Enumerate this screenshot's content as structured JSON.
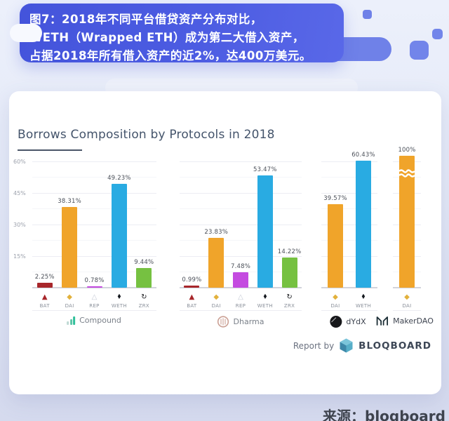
{
  "banner": {
    "lines": [
      "图7：2018年不同平台借贷资产分布对比，",
      "WETH（Wrapped ETH）成为第二大借入资产，",
      "占据2018年所有借入资产的近2%，达400万美元。"
    ],
    "bg_color": "#4C5CE2"
  },
  "card": {
    "title": "Borrows Composition by Protocols in 2018"
  },
  "chart_data": {
    "type": "bar",
    "title": "Borrows Composition by Protocols in 2018",
    "xlabel": "",
    "ylabel": "",
    "ylim": [
      0,
      60
    ],
    "yticks": [
      "60%",
      "45%",
      "30%",
      "15%"
    ],
    "grid": true,
    "legend_position": "none",
    "note": "MakerDAO DAI bar equals 100% and is drawn truncated with an axis-break squiggle",
    "token_colors": {
      "BAT": "#A8272B",
      "DAI": "#F0A42A",
      "REP": "#C44BE0",
      "WETH": "#29ABE2",
      "ZRX": "#76C141"
    },
    "token_icons": {
      "BAT": "▲",
      "DAI": "◆",
      "REP": "△",
      "WETH": "♦",
      "ZRX": "↻"
    },
    "token_icon_colors": {
      "BAT": "#A8272B",
      "DAI": "#E2B13C",
      "REP": "#C7CCD7",
      "WETH": "#15191F",
      "ZRX": "#17181B"
    },
    "groups": [
      {
        "name": "Compound",
        "categories": [
          "BAT",
          "DAI",
          "REP",
          "WETH",
          "ZRX"
        ],
        "values": [
          2.25,
          38.31,
          0.78,
          49.23,
          9.44
        ],
        "labels": [
          "2.25%",
          "38.31%",
          "0.78%",
          "49.23%",
          "9.44%"
        ]
      },
      {
        "name": "Dharma",
        "categories": [
          "BAT",
          "DAI",
          "REP",
          "WETH",
          "ZRX"
        ],
        "values": [
          0.99,
          23.83,
          7.48,
          53.47,
          14.22
        ],
        "labels": [
          "0.99%",
          "23.83%",
          "7.48%",
          "53.47%",
          "14.22%"
        ]
      },
      {
        "name": "dYdX",
        "categories": [
          "DAI",
          "WETH"
        ],
        "values": [
          39.57,
          60.43
        ],
        "labels": [
          "39.57%",
          "60.43%"
        ]
      },
      {
        "name": "MakerDAO",
        "categories": [
          "DAI"
        ],
        "values": [
          100
        ],
        "labels": [
          "100%"
        ],
        "truncated": true
      }
    ]
  },
  "report": {
    "label": "Report by",
    "brand": "BLOQBOARD"
  },
  "footer": {
    "source": "来源：bloqboard"
  }
}
